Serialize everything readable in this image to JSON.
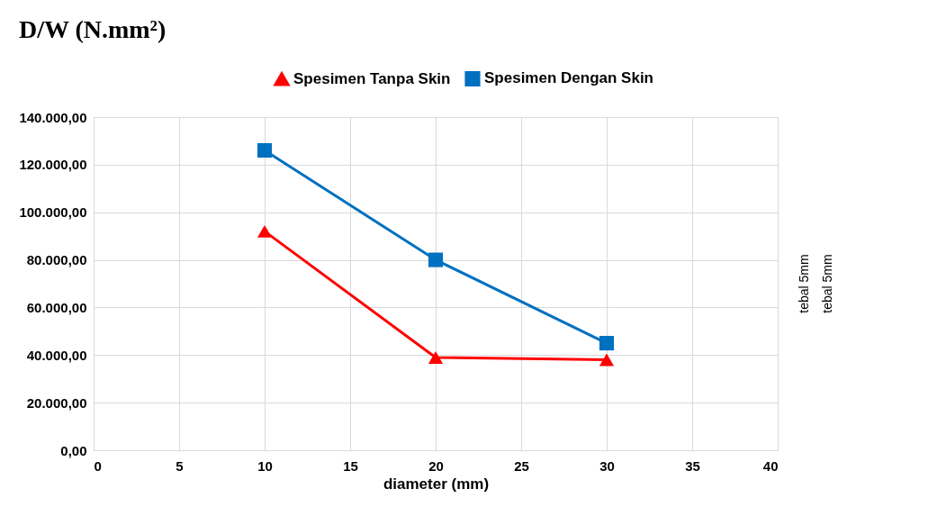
{
  "chart_data": {
    "type": "line",
    "title": "D/W (N.mm²)",
    "xlabel": "diameter (mm)",
    "x": [
      10,
      20,
      30
    ],
    "series": [
      {
        "name": "Spesimen Tanpa Skin",
        "color": "#ff0000",
        "marker": "triangle",
        "values": [
          92000,
          39000,
          38000
        ]
      },
      {
        "name": "Spesimen Dengan Skin",
        "color": "#0070c0",
        "marker": "square",
        "values": [
          126000,
          80000,
          45000
        ]
      }
    ],
    "xlim": [
      0,
      40
    ],
    "xticks": [
      0,
      5,
      10,
      15,
      20,
      25,
      30,
      35,
      40
    ],
    "ylim": [
      0,
      140000
    ],
    "yticks": [
      {
        "value": 0,
        "label": "0,00"
      },
      {
        "value": 20000,
        "label": "20.000,00"
      },
      {
        "value": 40000,
        "label": "40.000,00"
      },
      {
        "value": 60000,
        "label": "60.000,00"
      },
      {
        "value": 80000,
        "label": "80.000,00"
      },
      {
        "value": 100000,
        "label": "100.000,00"
      },
      {
        "value": 120000,
        "label": "120.000,00"
      },
      {
        "value": 140000,
        "label": "140.000,00"
      }
    ],
    "grid": true,
    "legend": "top",
    "line_style": "solid",
    "annotations": [
      "tebal 5mm",
      "tebal 5mm"
    ]
  }
}
